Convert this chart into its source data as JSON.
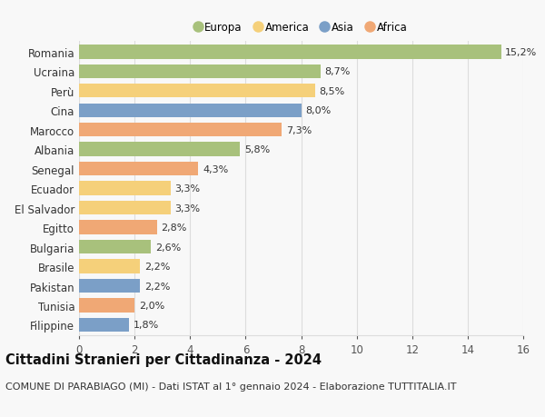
{
  "categories": [
    "Romania",
    "Ucraina",
    "Perù",
    "Cina",
    "Marocco",
    "Albania",
    "Senegal",
    "Ecuador",
    "El Salvador",
    "Egitto",
    "Bulgaria",
    "Brasile",
    "Pakistan",
    "Tunisia",
    "Filippine"
  ],
  "values": [
    15.2,
    8.7,
    8.5,
    8.0,
    7.3,
    5.8,
    4.3,
    3.3,
    3.3,
    2.8,
    2.6,
    2.2,
    2.2,
    2.0,
    1.8
  ],
  "continents": [
    "Europa",
    "Europa",
    "America",
    "Asia",
    "Africa",
    "Europa",
    "Africa",
    "America",
    "America",
    "Africa",
    "Europa",
    "America",
    "Asia",
    "Africa",
    "Asia"
  ],
  "colors": {
    "Europa": "#a8c17c",
    "America": "#f5d07a",
    "Asia": "#7b9fc7",
    "Africa": "#f0a875"
  },
  "legend_order": [
    "Europa",
    "America",
    "Asia",
    "Africa"
  ],
  "xlim": [
    0,
    16
  ],
  "xticks": [
    0,
    2,
    4,
    6,
    8,
    10,
    12,
    14,
    16
  ],
  "title": "Cittadini Stranieri per Cittadinanza - 2024",
  "subtitle": "COMUNE DI PARABIAGO (MI) - Dati ISTAT al 1° gennaio 2024 - Elaborazione TUTTITALIA.IT",
  "background_color": "#f8f8f8",
  "grid_color": "#dddddd",
  "bar_height": 0.72,
  "title_fontsize": 10.5,
  "subtitle_fontsize": 8.0,
  "label_fontsize": 8.5,
  "tick_fontsize": 8.5,
  "value_fontsize": 8.0
}
